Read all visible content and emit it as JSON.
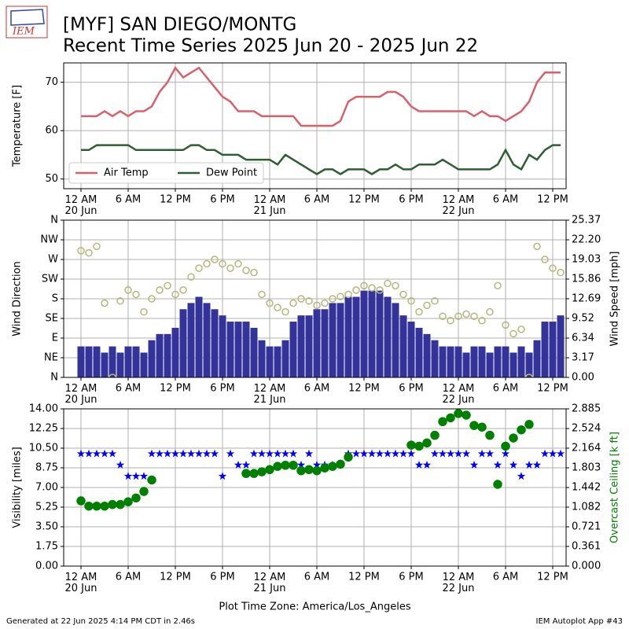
{
  "header": {
    "title": "[MYF] SAN DIEGO/MONTG",
    "subtitle": "Recent Time Series 2025 Jun 20 - 2025 Jun 22",
    "logo": "IEM"
  },
  "footer": {
    "left": "Generated at 22 Jun 2025 4:14 PM CDT in 2.46s",
    "right": "IEM Autoplot App #43"
  },
  "chart_data": [
    {
      "type": "line",
      "ylabel": "Temperature [F]",
      "grid": true,
      "legend": "lower left",
      "xlim": [
        "2025-06-19 21:48",
        "2025-06-22 13:42"
      ],
      "xticks": [
        {
          "value": "2025-06-20 00:00",
          "label": "12 AM\n20 Jun"
        },
        {
          "value": "2025-06-20 06:00",
          "label": "6 AM"
        },
        {
          "value": "2025-06-20 12:00",
          "label": "12 PM"
        },
        {
          "value": "2025-06-20 18:00",
          "label": "6 PM"
        },
        {
          "value": "2025-06-21 00:00",
          "label": "12 AM\n21 Jun"
        },
        {
          "value": "2025-06-21 06:00",
          "label": "6 AM"
        },
        {
          "value": "2025-06-21 12:00",
          "label": "12 PM"
        },
        {
          "value": "2025-06-21 18:00",
          "label": "6 PM"
        },
        {
          "value": "2025-06-22 00:00",
          "label": "12 AM\n22 Jun"
        },
        {
          "value": "2025-06-22 06:00",
          "label": "6 AM"
        },
        {
          "value": "2025-06-22 12:00",
          "label": "12 PM"
        }
      ],
      "ylim": [
        48,
        74
      ],
      "yticks": [
        50,
        60,
        70
      ],
      "x": [
        "2025-06-20 00:00",
        "2025-06-20 01:00",
        "2025-06-20 02:00",
        "2025-06-20 03:00",
        "2025-06-20 04:00",
        "2025-06-20 05:00",
        "2025-06-20 06:00",
        "2025-06-20 07:00",
        "2025-06-20 08:00",
        "2025-06-20 09:00",
        "2025-06-20 10:00",
        "2025-06-20 11:00",
        "2025-06-20 12:00",
        "2025-06-20 13:00",
        "2025-06-20 14:00",
        "2025-06-20 15:00",
        "2025-06-20 16:00",
        "2025-06-20 17:00",
        "2025-06-20 18:00",
        "2025-06-20 19:00",
        "2025-06-20 20:00",
        "2025-06-20 21:00",
        "2025-06-20 22:00",
        "2025-06-20 23:00",
        "2025-06-21 00:00",
        "2025-06-21 01:00",
        "2025-06-21 02:00",
        "2025-06-21 03:00",
        "2025-06-21 04:00",
        "2025-06-21 05:00",
        "2025-06-21 06:00",
        "2025-06-21 07:00",
        "2025-06-21 08:00",
        "2025-06-21 09:00",
        "2025-06-21 10:00",
        "2025-06-21 11:00",
        "2025-06-21 12:00",
        "2025-06-21 13:00",
        "2025-06-21 14:00",
        "2025-06-21 15:00",
        "2025-06-21 16:00",
        "2025-06-21 17:00",
        "2025-06-21 18:00",
        "2025-06-21 19:00",
        "2025-06-21 20:00",
        "2025-06-21 21:00",
        "2025-06-21 22:00",
        "2025-06-21 23:00",
        "2025-06-22 00:00",
        "2025-06-22 01:00",
        "2025-06-22 02:00",
        "2025-06-22 03:00",
        "2025-06-22 04:00",
        "2025-06-22 05:00",
        "2025-06-22 06:00",
        "2025-06-22 07:00",
        "2025-06-22 08:00",
        "2025-06-22 09:00",
        "2025-06-22 10:00",
        "2025-06-22 11:00",
        "2025-06-22 12:00",
        "2025-06-22 13:00"
      ],
      "series": [
        {
          "name": "Air Temp",
          "color": "#d9606a",
          "marker": "line",
          "values": [
            63,
            63,
            63,
            64,
            63,
            64,
            63,
            64,
            64,
            65,
            68,
            70,
            73,
            71,
            72,
            73,
            71,
            69,
            67,
            66,
            64,
            64,
            64,
            63,
            63,
            63,
            63,
            63,
            61,
            61,
            61,
            61,
            61,
            62,
            66,
            67,
            67,
            67,
            67,
            68,
            68,
            67,
            65,
            64,
            64,
            64,
            64,
            64,
            64,
            64,
            63,
            64,
            63,
            63,
            62,
            63,
            64,
            66,
            70,
            72,
            72,
            72
          ]
        },
        {
          "name": "Dew Point",
          "color": "#2e5e32",
          "marker": "line",
          "values": [
            56,
            56,
            57,
            57,
            57,
            57,
            57,
            56,
            56,
            56,
            56,
            56,
            56,
            56,
            57,
            57,
            56,
            56,
            55,
            55,
            55,
            54,
            54,
            54,
            54,
            53,
            55,
            54,
            53,
            52,
            51,
            52,
            52,
            51,
            52,
            52,
            52,
            51,
            52,
            52,
            53,
            52,
            52,
            53,
            53,
            53,
            54,
            53,
            52,
            52,
            52,
            52,
            52,
            53,
            56,
            53,
            52,
            55,
            54,
            56,
            57,
            57
          ]
        }
      ]
    },
    {
      "type": "combo",
      "ylabel": "Wind Direction",
      "y2label": "Wind Speed [mph]",
      "grid": true,
      "xlim": [
        "2025-06-19 21:48",
        "2025-06-22 13:42"
      ],
      "xticks": [
        {
          "value": "2025-06-20 00:00",
          "label": "12 AM\n20 Jun"
        },
        {
          "value": "2025-06-20 06:00",
          "label": "6 AM"
        },
        {
          "value": "2025-06-20 12:00",
          "label": "12 PM"
        },
        {
          "value": "2025-06-20 18:00",
          "label": "6 PM"
        },
        {
          "value": "2025-06-21 00:00",
          "label": "12 AM\n21 Jun"
        },
        {
          "value": "2025-06-21 06:00",
          "label": "6 AM"
        },
        {
          "value": "2025-06-21 12:00",
          "label": "12 PM"
        },
        {
          "value": "2025-06-21 18:00",
          "label": "6 PM"
        },
        {
          "value": "2025-06-22 00:00",
          "label": "12 AM\n22 Jun"
        },
        {
          "value": "2025-06-22 06:00",
          "label": "6 AM"
        },
        {
          "value": "2025-06-22 12:00",
          "label": "12 PM"
        }
      ],
      "ylim": [
        0,
        360
      ],
      "yticks": [
        {
          "value": 0,
          "label": "N"
        },
        {
          "value": 45,
          "label": "NE"
        },
        {
          "value": 90,
          "label": "E"
        },
        {
          "value": 135,
          "label": "SE"
        },
        {
          "value": 180,
          "label": "S"
        },
        {
          "value": 225,
          "label": "SW"
        },
        {
          "value": 270,
          "label": "W"
        },
        {
          "value": 315,
          "label": "NW"
        },
        {
          "value": 360,
          "label": "N"
        }
      ],
      "y2lim": [
        0,
        25.37
      ],
      "y2ticks": [
        {
          "value": 0,
          "label": "0.00"
        },
        {
          "value": 3.17,
          "label": "3.17"
        },
        {
          "value": 6.34,
          "label": "6.34"
        },
        {
          "value": 9.52,
          "label": "9.52"
        },
        {
          "value": 12.69,
          "label": "12.69"
        },
        {
          "value": 15.86,
          "label": "15.86"
        },
        {
          "value": 19.03,
          "label": "19.03"
        },
        {
          "value": 22.2,
          "label": "22.20"
        },
        {
          "value": 25.37,
          "label": "25.37"
        }
      ],
      "x": [
        "2025-06-20 00:00",
        "2025-06-20 01:00",
        "2025-06-20 02:00",
        "2025-06-20 03:00",
        "2025-06-20 04:00",
        "2025-06-20 05:00",
        "2025-06-20 06:00",
        "2025-06-20 07:00",
        "2025-06-20 08:00",
        "2025-06-20 09:00",
        "2025-06-20 10:00",
        "2025-06-20 11:00",
        "2025-06-20 12:00",
        "2025-06-20 13:00",
        "2025-06-20 14:00",
        "2025-06-20 15:00",
        "2025-06-20 16:00",
        "2025-06-20 17:00",
        "2025-06-20 18:00",
        "2025-06-20 19:00",
        "2025-06-20 20:00",
        "2025-06-20 21:00",
        "2025-06-20 22:00",
        "2025-06-20 23:00",
        "2025-06-21 00:00",
        "2025-06-21 01:00",
        "2025-06-21 02:00",
        "2025-06-21 03:00",
        "2025-06-21 04:00",
        "2025-06-21 05:00",
        "2025-06-21 06:00",
        "2025-06-21 07:00",
        "2025-06-21 08:00",
        "2025-06-21 09:00",
        "2025-06-21 10:00",
        "2025-06-21 11:00",
        "2025-06-21 12:00",
        "2025-06-21 13:00",
        "2025-06-21 14:00",
        "2025-06-21 15:00",
        "2025-06-21 16:00",
        "2025-06-21 17:00",
        "2025-06-21 18:00",
        "2025-06-21 19:00",
        "2025-06-21 20:00",
        "2025-06-21 21:00",
        "2025-06-21 22:00",
        "2025-06-21 23:00",
        "2025-06-22 00:00",
        "2025-06-22 01:00",
        "2025-06-22 02:00",
        "2025-06-22 03:00",
        "2025-06-22 04:00",
        "2025-06-22 05:00",
        "2025-06-22 06:00",
        "2025-06-22 07:00",
        "2025-06-22 08:00",
        "2025-06-22 09:00",
        "2025-06-22 10:00",
        "2025-06-22 11:00",
        "2025-06-22 12:00",
        "2025-06-22 13:00"
      ],
      "series": [
        {
          "color": "#333399",
          "marker": "bar",
          "axis": "y2",
          "values": [
            5,
            5,
            5,
            4,
            5,
            4,
            5,
            5,
            4,
            6,
            7,
            7,
            8,
            11,
            12,
            13,
            12,
            11,
            10,
            9,
            9,
            9,
            8,
            6,
            5,
            5,
            6,
            9,
            10,
            10,
            11,
            11,
            12,
            12,
            13,
            13,
            14,
            14,
            14,
            13,
            12,
            10,
            9,
            8,
            7,
            6,
            5,
            5,
            5,
            4,
            5,
            5,
            4,
            5,
            5,
            4,
            5,
            4,
            6,
            9,
            9,
            10
          ]
        },
        {
          "color": "#b5b87a",
          "marker": "circle",
          "hollow": true,
          "values": [
            290,
            285,
            300,
            170,
            0,
            175,
            200,
            190,
            150,
            180,
            200,
            210,
            190,
            200,
            230,
            250,
            260,
            270,
            260,
            250,
            260,
            245,
            240,
            190,
            170,
            160,
            150,
            170,
            180,
            175,
            165,
            170,
            180,
            185,
            190,
            200,
            210,
            205,
            200,
            215,
            210,
            190,
            175,
            150,
            165,
            175,
            140,
            130,
            140,
            145,
            140,
            130,
            150,
            210,
            120,
            100,
            110,
            0,
            300,
            270,
            250,
            240
          ]
        }
      ]
    },
    {
      "type": "scatter",
      "ylabel": "Visibility [miles]",
      "y2label": "Overcast Ceiling [k ft]",
      "y2label_color": "#008000",
      "xlabel": "Plot Time Zone: America/Los_Angeles",
      "grid": true,
      "xlim": [
        "2025-06-19 21:48",
        "2025-06-22 13:42"
      ],
      "xticks": [
        {
          "value": "2025-06-20 00:00",
          "label": "12 AM\n20 Jun"
        },
        {
          "value": "2025-06-20 06:00",
          "label": "6 AM"
        },
        {
          "value": "2025-06-20 12:00",
          "label": "12 PM"
        },
        {
          "value": "2025-06-20 18:00",
          "label": "6 PM"
        },
        {
          "value": "2025-06-21 00:00",
          "label": "12 AM\n21 Jun"
        },
        {
          "value": "2025-06-21 06:00",
          "label": "6 AM"
        },
        {
          "value": "2025-06-21 12:00",
          "label": "12 PM"
        },
        {
          "value": "2025-06-21 18:00",
          "label": "6 PM"
        },
        {
          "value": "2025-06-22 00:00",
          "label": "12 AM\n22 Jun"
        },
        {
          "value": "2025-06-22 06:00",
          "label": "6 AM"
        },
        {
          "value": "2025-06-22 12:00",
          "label": "12 PM"
        }
      ],
      "ylim": [
        0,
        14
      ],
      "yticks": [
        {
          "value": 0,
          "label": "0.00"
        },
        {
          "value": 1.75,
          "label": "1.75"
        },
        {
          "value": 3.5,
          "label": "3.50"
        },
        {
          "value": 5.25,
          "label": "5.25"
        },
        {
          "value": 7,
          "label": "7.00"
        },
        {
          "value": 8.75,
          "label": "8.75"
        },
        {
          "value": 10.5,
          "label": "10.50"
        },
        {
          "value": 12.25,
          "label": "12.25"
        },
        {
          "value": 14,
          "label": "14.00"
        }
      ],
      "y2lim": [
        0,
        2.885
      ],
      "y2ticks": [
        {
          "value": 0,
          "label": "0.000"
        },
        {
          "value": 0.361,
          "label": "0.361"
        },
        {
          "value": 0.721,
          "label": "0.721"
        },
        {
          "value": 1.082,
          "label": "1.082"
        },
        {
          "value": 1.442,
          "label": "1.442"
        },
        {
          "value": 1.803,
          "label": "1.803"
        },
        {
          "value": 2.164,
          "label": "2.164"
        },
        {
          "value": 2.524,
          "label": "2.524"
        },
        {
          "value": 2.885,
          "label": "2.885"
        }
      ],
      "x": [
        "2025-06-20 00:00",
        "2025-06-20 01:00",
        "2025-06-20 02:00",
        "2025-06-20 03:00",
        "2025-06-20 04:00",
        "2025-06-20 05:00",
        "2025-06-20 06:00",
        "2025-06-20 07:00",
        "2025-06-20 08:00",
        "2025-06-20 09:00",
        "2025-06-20 10:00",
        "2025-06-20 11:00",
        "2025-06-20 12:00",
        "2025-06-20 13:00",
        "2025-06-20 14:00",
        "2025-06-20 15:00",
        "2025-06-20 16:00",
        "2025-06-20 17:00",
        "2025-06-20 18:00",
        "2025-06-20 19:00",
        "2025-06-20 20:00",
        "2025-06-20 21:00",
        "2025-06-20 22:00",
        "2025-06-20 23:00",
        "2025-06-21 00:00",
        "2025-06-21 01:00",
        "2025-06-21 02:00",
        "2025-06-21 03:00",
        "2025-06-21 04:00",
        "2025-06-21 05:00",
        "2025-06-21 06:00",
        "2025-06-21 07:00",
        "2025-06-21 08:00",
        "2025-06-21 09:00",
        "2025-06-21 10:00",
        "2025-06-21 11:00",
        "2025-06-21 12:00",
        "2025-06-21 13:00",
        "2025-06-21 14:00",
        "2025-06-21 15:00",
        "2025-06-21 16:00",
        "2025-06-21 17:00",
        "2025-06-21 18:00",
        "2025-06-21 19:00",
        "2025-06-21 20:00",
        "2025-06-21 21:00",
        "2025-06-21 22:00",
        "2025-06-21 23:00",
        "2025-06-22 00:00",
        "2025-06-22 01:00",
        "2025-06-22 02:00",
        "2025-06-22 03:00",
        "2025-06-22 04:00",
        "2025-06-22 05:00",
        "2025-06-22 06:00",
        "2025-06-22 07:00",
        "2025-06-22 08:00",
        "2025-06-22 09:00",
        "2025-06-22 10:00",
        "2025-06-22 11:00",
        "2025-06-22 12:00",
        "2025-06-22 13:00"
      ],
      "series": [
        {
          "color": "#0000ff",
          "marker": "star",
          "values": [
            10,
            10,
            10,
            10,
            10,
            9,
            8,
            8,
            8,
            10,
            10,
            10,
            10,
            10,
            10,
            10,
            10,
            10,
            8,
            10,
            9,
            9,
            10,
            10,
            10,
            10,
            10,
            10,
            9,
            10,
            9,
            9,
            9,
            9,
            10,
            10,
            10,
            10,
            10,
            10,
            10,
            10,
            10,
            9,
            9,
            10,
            10,
            10,
            10,
            10,
            9,
            10,
            10,
            9,
            10,
            9,
            8,
            9,
            9,
            10,
            10,
            10
          ]
        },
        {
          "color": "#008000",
          "marker": "circle",
          "axis": "y2",
          "values": [
            1.197,
            1.1,
            1.1,
            1.1,
            1.13,
            1.13,
            1.18,
            1.25,
            1.37,
            1.58,
            null,
            null,
            null,
            null,
            null,
            null,
            null,
            null,
            null,
            null,
            null,
            1.7,
            1.7,
            1.73,
            1.77,
            1.83,
            1.85,
            1.85,
            1.75,
            1.77,
            1.75,
            1.8,
            1.83,
            1.87,
            2.0,
            null,
            null,
            null,
            null,
            null,
            null,
            null,
            2.22,
            2.2,
            2.26,
            2.4,
            2.65,
            2.72,
            2.8,
            2.77,
            2.58,
            2.55,
            2.4,
            1.5,
            2.2,
            2.35,
            2.5,
            2.6,
            null,
            null,
            null,
            null
          ]
        }
      ]
    }
  ]
}
